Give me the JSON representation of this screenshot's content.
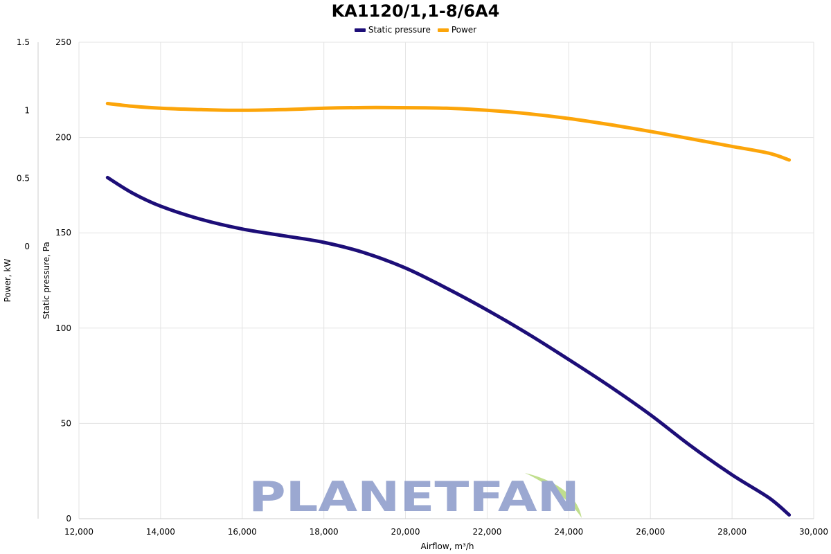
{
  "chart_data": {
    "type": "line",
    "title": "KA1120/1,1-8/6A4",
    "xlabel": "Airflow, m³/h",
    "ylabel": "Static pressure, Pa",
    "y2label": "Power, kW",
    "xlim": [
      12000,
      30000
    ],
    "ylim": [
      0,
      250
    ],
    "y2lim": [
      -2,
      1.5
    ],
    "x_ticks": [
      "12,000",
      "14,000",
      "16,000",
      "18,000",
      "20,000",
      "22,000",
      "24,000",
      "26,000",
      "28,000",
      "30,000"
    ],
    "y_ticks": [
      "0",
      "50",
      "100",
      "150",
      "200",
      "250"
    ],
    "y2_ticks": [
      "0",
      "0.5",
      "1",
      "1.5"
    ],
    "grid": true,
    "legend_position": "top-center",
    "series": [
      {
        "name": "Static pressure",
        "color": "#1d0e78",
        "axis": "left",
        "x": [
          12700,
          13300,
          14000,
          15000,
          16000,
          17000,
          18000,
          19000,
          20000,
          21000,
          22000,
          23000,
          24000,
          25000,
          26000,
          27000,
          28000,
          28900,
          29400
        ],
        "y": [
          179,
          171,
          164,
          157,
          152,
          148.5,
          145,
          139.5,
          131.5,
          121,
          109.5,
          97,
          83.5,
          69.5,
          54.5,
          38,
          23,
          11,
          2
        ]
      },
      {
        "name": "Power",
        "color": "#fca50a",
        "axis": "right",
        "x": [
          12700,
          13300,
          14000,
          15000,
          15800,
          17000,
          18000,
          19000,
          19600,
          21000,
          22000,
          23000,
          24000,
          25000,
          26000,
          27000,
          28000,
          28900,
          29400
        ],
        "y": [
          1.05,
          1.03,
          1.015,
          1.005,
          1.0,
          1.005,
          1.015,
          1.02,
          1.02,
          1.015,
          1.0,
          0.975,
          0.94,
          0.895,
          0.845,
          0.79,
          0.735,
          0.685,
          0.635
        ]
      }
    ]
  },
  "watermark": "PLANETFAN",
  "colors": {
    "grid": "#e3e3e3",
    "axis": "#cccccc",
    "watermark": "#8a9ac9",
    "leaf": "#b6d97a"
  }
}
